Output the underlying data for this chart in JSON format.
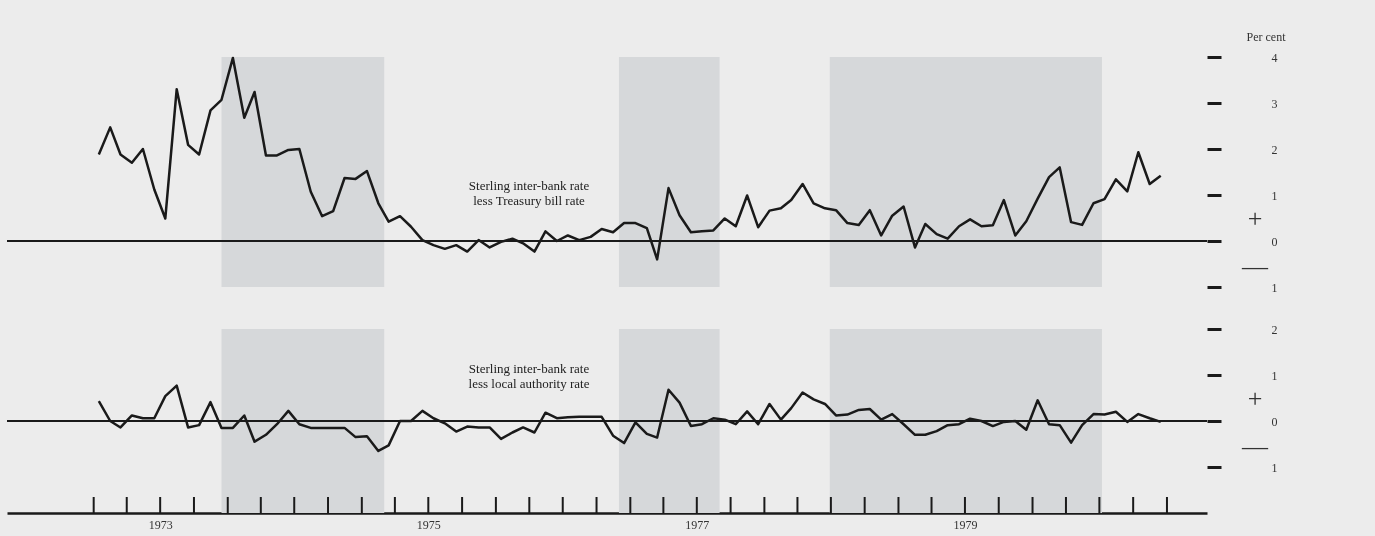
{
  "chart_data": [
    {
      "type": "line",
      "ylabel": "Per cent",
      "tick_labels": "y",
      "x": [
        "1973-01-15",
        "1973-02-15",
        "1973-03-15",
        "1973-04-15",
        "1973-05-15",
        "1973-06-15",
        "1973-07-15",
        "1973-08-15",
        "1973-09-15",
        "1973-10-15",
        "1973-11-15",
        "1973-12-15",
        "1974-01-15",
        "1974-02-15",
        "1974-03-15",
        "1974-04-15",
        "1974-05-15",
        "1974-06-15",
        "1974-07-15",
        "1974-08-15",
        "1974-09-15",
        "1974-10-15",
        "1974-11-15",
        "1974-12-15",
        "1975-01-15",
        "1975-02-15",
        "1975-03-15",
        "1975-04-15",
        "1975-05-15",
        "1975-06-15",
        "1975-07-15",
        "1975-08-15",
        "1975-09-15",
        "1975-10-15",
        "1975-11-15",
        "1975-12-15",
        "1976-01-15",
        "1976-02-15",
        "1976-03-15",
        "1976-04-15",
        "1976-05-15",
        "1976-06-15",
        "1976-07-15",
        "1976-08-15",
        "1976-09-15",
        "1976-10-15",
        "1976-11-15",
        "1976-12-15",
        "1977-01-15",
        "1977-02-15",
        "1977-03-15",
        "1977-04-15",
        "1977-05-15",
        "1977-06-15",
        "1977-07-15",
        "1977-08-15",
        "1977-09-15",
        "1977-10-15",
        "1977-11-15",
        "1977-12-15",
        "1978-01-15",
        "1978-02-15",
        "1978-03-15",
        "1978-04-15",
        "1978-05-15",
        "1978-06-15",
        "1978-07-15",
        "1978-08-15",
        "1978-09-15",
        "1978-10-15",
        "1978-11-15",
        "1978-12-15",
        "1979-01-15",
        "1979-02-15",
        "1979-03-15",
        "1979-04-15",
        "1979-05-15",
        "1979-06-15",
        "1979-07-15",
        "1979-08-15",
        "1979-09-15",
        "1979-10-15",
        "1979-11-15",
        "1979-12-15",
        "1980-01-15",
        "1980-02-15",
        "1980-03-15",
        "1980-04-15",
        "1980-05-15",
        "1980-06-15",
        "1980-07-15",
        "1980-08-15",
        "1980-09-15",
        "1980-10-15",
        "1980-11-15",
        "1980-12-15"
      ],
      "series": [
        {
          "name": "Sterling inter-bank rate\nless Treasury bill rate",
          "color": "#1a1a1a",
          "values": [
            1.88,
            2.47,
            1.88,
            1.7,
            2.0,
            1.12,
            0.49,
            3.3,
            2.09,
            1.88,
            2.84,
            3.07,
            3.98,
            2.68,
            3.24,
            1.86,
            1.86,
            1.98,
            2.0,
            1.07,
            0.54,
            0.65,
            1.37,
            1.35,
            1.52,
            0.82,
            0.42,
            0.54,
            0.31,
            0.02,
            -0.09,
            -0.17,
            -0.09,
            -0.23,
            0.02,
            -0.14,
            -0.02,
            0.05,
            -0.05,
            -0.23,
            0.21,
            0,
            0.12,
            0.02,
            0.09,
            0.26,
            0.19,
            0.39,
            0.39,
            0.28,
            -0.4,
            1.15,
            0.56,
            0.19,
            0.21,
            0.23,
            0.49,
            0.32,
            0.99,
            0.3,
            0.66,
            0.71,
            0.89,
            1.24,
            0.82,
            0.71,
            0.67,
            0.39,
            0.35,
            0.67,
            0.12,
            0.55,
            0.75,
            -0.14,
            0.37,
            0.15,
            0.05,
            0.32,
            0.47,
            0.32,
            0.34,
            0.89,
            0.12,
            0.43,
            0.92,
            1.39,
            1.6,
            0.41,
            0.35,
            0.82,
            0.91,
            1.34,
            1.08,
            1.93,
            1.24,
            1.42
          ]
        }
      ],
      "xlim": [
        "1972-05-10",
        "1981-04-20"
      ],
      "ylim": [
        -1,
        4
      ],
      "yticks": [
        {
          "value": -1,
          "label": "1"
        },
        0,
        1,
        2,
        3,
        4
      ],
      "ref_lines": [
        {
          "axis": "y",
          "value": 0
        }
      ],
      "bands": [
        {
          "axis": "x",
          "from": "1973-12-15",
          "to": "1975-03-03",
          "color": "#d6d8da"
        },
        {
          "axis": "x",
          "from": "1976-12-01",
          "to": "1977-09-01",
          "color": "#d6d8da"
        },
        {
          "axis": "x",
          "from": "1978-06-28",
          "to": "1980-07-08",
          "color": "#d6d8da"
        }
      ],
      "annotations": [
        "+",
        "—"
      ]
    },
    {
      "type": "line",
      "x": [
        "1973-01-15",
        "1973-02-15",
        "1973-03-15",
        "1973-04-15",
        "1973-05-15",
        "1973-06-15",
        "1973-07-15",
        "1973-08-15",
        "1973-09-15",
        "1973-10-15",
        "1973-11-15",
        "1973-12-15",
        "1974-01-15",
        "1974-02-15",
        "1974-03-15",
        "1974-04-15",
        "1974-05-15",
        "1974-06-15",
        "1974-07-15",
        "1974-08-15",
        "1974-09-15",
        "1974-10-15",
        "1974-11-15",
        "1974-12-15",
        "1975-01-15",
        "1975-02-15",
        "1975-03-15",
        "1975-04-15",
        "1975-05-15",
        "1975-06-15",
        "1975-07-15",
        "1975-08-15",
        "1975-09-15",
        "1975-10-15",
        "1975-11-15",
        "1975-12-15",
        "1976-01-15",
        "1976-02-15",
        "1976-03-15",
        "1976-04-15",
        "1976-05-15",
        "1976-06-15",
        "1976-07-15",
        "1976-08-15",
        "1976-09-15",
        "1976-10-15",
        "1976-11-15",
        "1976-12-15",
        "1977-01-15",
        "1977-02-15",
        "1977-03-15",
        "1977-04-15",
        "1977-05-15",
        "1977-06-15",
        "1977-07-15",
        "1977-08-15",
        "1977-09-15",
        "1977-10-15",
        "1977-11-15",
        "1977-12-15",
        "1978-01-15",
        "1978-02-15",
        "1978-03-15",
        "1978-04-15",
        "1978-05-15",
        "1978-06-15",
        "1978-07-15",
        "1978-08-15",
        "1978-09-15",
        "1978-10-15",
        "1978-11-15",
        "1978-12-15",
        "1979-01-15",
        "1979-02-15",
        "1979-03-15",
        "1979-04-15",
        "1979-05-15",
        "1979-06-15",
        "1979-07-15",
        "1979-08-15",
        "1979-09-15",
        "1979-10-15",
        "1979-11-15",
        "1979-12-15",
        "1980-01-15",
        "1980-02-15",
        "1980-03-15",
        "1980-04-15",
        "1980-05-15",
        "1980-06-15",
        "1980-07-15",
        "1980-08-15",
        "1980-09-15",
        "1980-10-15",
        "1980-11-15",
        "1980-12-15"
      ],
      "series": [
        {
          "name": "Sterling inter-bank rate\nless local authority rate",
          "color": "#1a1a1a",
          "values": [
            0.43,
            0,
            -0.14,
            0.12,
            0.06,
            0.06,
            0.54,
            0.77,
            -0.14,
            -0.09,
            0.41,
            -0.15,
            -0.15,
            0.12,
            -0.45,
            -0.3,
            -0.07,
            0.22,
            -0.07,
            -0.15,
            -0.15,
            -0.15,
            -0.15,
            -0.35,
            -0.33,
            -0.65,
            -0.53,
            0,
            0,
            0.22,
            0.06,
            -0.05,
            -0.23,
            -0.12,
            -0.14,
            -0.14,
            -0.39,
            -0.25,
            -0.14,
            -0.25,
            0.18,
            0.06,
            0.08,
            0.09,
            0.09,
            0.09,
            -0.32,
            -0.48,
            -0.03,
            -0.28,
            -0.36,
            0.68,
            0.4,
            -0.11,
            -0.07,
            0.06,
            0.03,
            -0.07,
            0.21,
            -0.07,
            0.37,
            0.03,
            0.28,
            0.62,
            0.47,
            0.37,
            0.12,
            0.14,
            0.24,
            0.26,
            0.03,
            0.15,
            -0.07,
            -0.3,
            -0.3,
            -0.22,
            -0.09,
            -0.07,
            0.05,
            0,
            -0.11,
            -0.02,
            0,
            -0.19,
            0.45,
            -0.07,
            -0.09,
            -0.47,
            -0.09,
            0.15,
            0.14,
            0.2,
            -0.02,
            0.15,
            0.06,
            -0.02
          ]
        }
      ],
      "xlim": [
        "1972-05-10",
        "1981-04-20"
      ],
      "ylim": [
        -2,
        2
      ],
      "xticks": [
        {
          "value": "1973-01-01",
          "label": null
        },
        {
          "value": "1973-04-01",
          "label": null
        },
        {
          "value": "1973-07-01",
          "label": "1973"
        },
        {
          "value": "1973-10-01",
          "label": null
        },
        {
          "value": "1974-01-01",
          "label": null
        },
        {
          "value": "1974-04-01",
          "label": null
        },
        {
          "value": "1974-07-01",
          "label": null
        },
        {
          "value": "1974-10-01",
          "label": null
        },
        {
          "value": "1975-01-01",
          "label": null
        },
        {
          "value": "1975-04-01",
          "label": null
        },
        {
          "value": "1975-07-01",
          "label": "1975"
        },
        {
          "value": "1975-10-01",
          "label": null
        },
        {
          "value": "1976-01-01",
          "label": null
        },
        {
          "value": "1976-04-01",
          "label": null
        },
        {
          "value": "1976-07-01",
          "label": null
        },
        {
          "value": "1976-10-01",
          "label": null
        },
        {
          "value": "1977-01-01",
          "label": null
        },
        {
          "value": "1977-04-01",
          "label": null
        },
        {
          "value": "1977-07-01",
          "label": "1977"
        },
        {
          "value": "1977-10-01",
          "label": null
        },
        {
          "value": "1978-01-01",
          "label": null
        },
        {
          "value": "1978-04-01",
          "label": null
        },
        {
          "value": "1978-07-01",
          "label": null
        },
        {
          "value": "1978-10-01",
          "label": null
        },
        {
          "value": "1979-01-01",
          "label": null
        },
        {
          "value": "1979-04-01",
          "label": null
        },
        {
          "value": "1979-07-01",
          "label": "1979"
        },
        {
          "value": "1979-10-01",
          "label": null
        },
        {
          "value": "1980-01-01",
          "label": null
        },
        {
          "value": "1980-04-01",
          "label": null
        },
        {
          "value": "1980-07-01",
          "label": null
        },
        {
          "value": "1980-10-01",
          "label": null
        },
        {
          "value": "1981-01-01",
          "label": null
        }
      ],
      "yticks": [
        {
          "value": -1,
          "label": "1"
        },
        0,
        1,
        2
      ],
      "ref_lines": [
        {
          "axis": "y",
          "value": 0
        }
      ],
      "bands": [
        {
          "axis": "x",
          "from": "1973-12-15",
          "to": "1975-03-03",
          "color": "#d6d8da"
        },
        {
          "axis": "x",
          "from": "1976-12-01",
          "to": "1977-09-01",
          "color": "#d6d8da"
        },
        {
          "axis": "x",
          "from": "1978-06-28",
          "to": "1980-07-08",
          "color": "#d6d8da"
        }
      ],
      "annotations": [
        "+",
        "—"
      ]
    }
  ]
}
